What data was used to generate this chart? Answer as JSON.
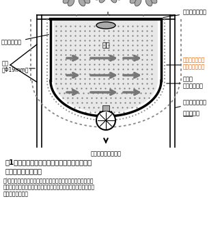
{
  "title_line1": "図1　培地の昇温抑制機能を備えたイチゴ高設",
  "title_line2": "　　栽培装置の概略",
  "note_line1": "注)ダクトへの送風は雨よけハウス内に既設の暖房機の送風機能",
  "note_line2": "　を利用した。培地はビートモスと籾殻くん炭を等重混合したも",
  "note_line3": "　のを使用した。",
  "label_silver": "シルバーマルチ",
  "label_water_tube": "潅水チューブ",
  "label_steel_pipe": "鋼管",
  "label_steel_pipe2": "（Φ19mm）",
  "label_baichi": "培地",
  "label_kikasennen": "気化潜熱による",
  "label_kikasennen2": "培地の昇温抑制",
  "label_saibai": "栽培槽",
  "label_fushokufu": "不繊布シート",
  "label_bousui": "防水透湿シート",
  "label_sofu": "送風ダクト",
  "label_yojoui": "余剰水の回収・循環",
  "bg_color": "#ffffff",
  "label_orange_color": "#e06000"
}
